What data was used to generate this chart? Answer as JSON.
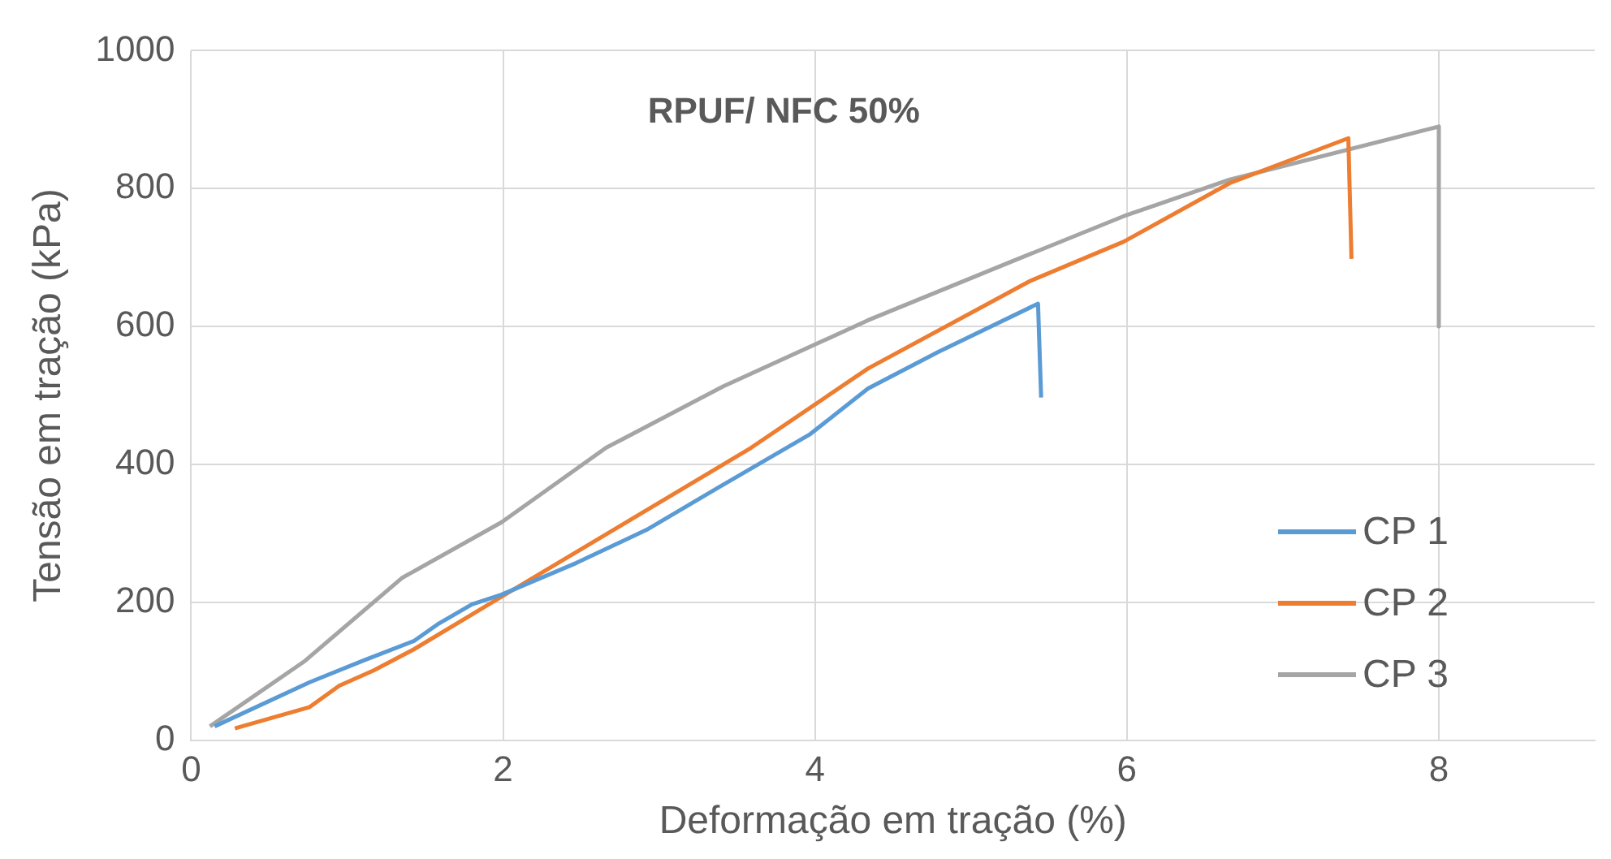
{
  "chart_data": {
    "type": "line",
    "title": "RPUF/ NFC 50%",
    "xlabel": "Deformação em tração (%)",
    "ylabel": "Tensão em tração (kPa)",
    "xlim": [
      0,
      9
    ],
    "xticks": [
      0,
      2,
      4,
      6,
      8
    ],
    "ylim": [
      0,
      1000
    ],
    "yticks": [
      0,
      200,
      400,
      600,
      800,
      1000
    ],
    "grid": true,
    "legend": "bottom right",
    "marker": "none",
    "line_style": "solid",
    "series": [
      {
        "name": "CP 1",
        "color": "#5b9bd5",
        "x": [
          0.15,
          0.76,
          1.1,
          1.43,
          1.58,
          1.8,
          1.99,
          2.47,
          2.92,
          3.37,
          3.97,
          4.34,
          4.79,
          5.43,
          5.45
        ],
        "values": [
          20,
          84,
          115,
          144,
          168,
          197,
          211,
          257,
          305,
          365,
          444,
          510,
          563,
          633,
          497
        ]
      },
      {
        "name": "CP 2",
        "color": "#ed7d31",
        "x": [
          0.28,
          0.76,
          0.95,
          1.17,
          1.43,
          1.99,
          2.85,
          3.59,
          4.34,
          5.38,
          5.98,
          6.66,
          7.42,
          7.44
        ],
        "values": [
          17,
          48,
          79,
          101,
          132,
          208,
          324,
          424,
          539,
          666,
          723,
          808,
          873,
          698
        ]
      },
      {
        "name": "CP 3",
        "color": "#a5a5a5",
        "x": [
          0.12,
          0.73,
          1.35,
          1.99,
          2.66,
          3.41,
          4.34,
          5.27,
          5.98,
          6.66,
          8.0,
          8.0
        ],
        "values": [
          20,
          115,
          235,
          316,
          424,
          513,
          609,
          695,
          760,
          813,
          890,
          600
        ]
      }
    ]
  }
}
